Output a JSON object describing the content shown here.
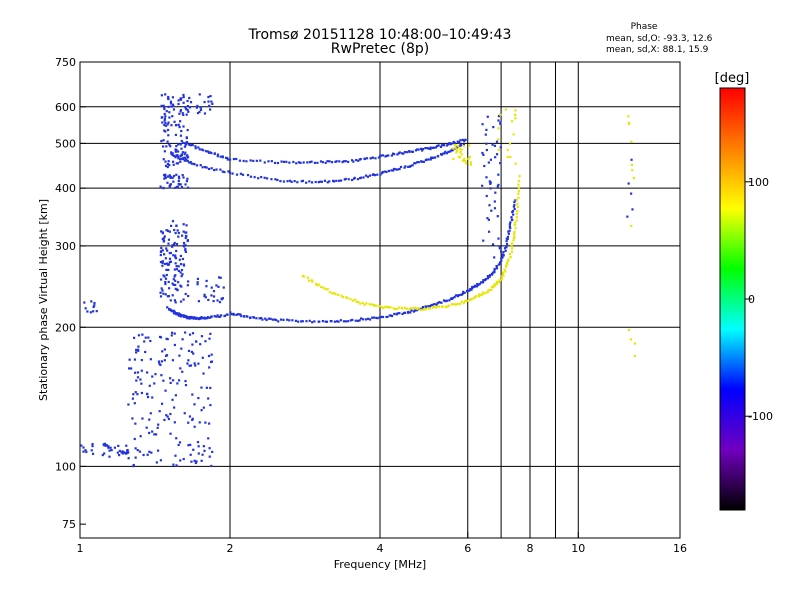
{
  "chart_data": {
    "type": "scatter",
    "title": "Tromsø 20151128 10:48:00–10:49:43",
    "subtitle": "RwPretec (8p)",
    "xlabel": "Frequency [MHz]",
    "ylabel": "Stationary phase Virtual Height [km]",
    "x_scale": "log",
    "y_scale": "log",
    "xlim": [
      1,
      16
    ],
    "ylim": [
      70,
      750
    ],
    "x_ticks": [
      1,
      2,
      4,
      6,
      8,
      10,
      16
    ],
    "y_ticks": [
      75,
      100,
      200,
      300,
      400,
      500,
      600,
      750
    ],
    "x_gridlines": [
      2,
      4,
      6,
      7,
      8,
      9,
      10
    ],
    "y_gridlines": [
      100,
      200,
      300,
      400,
      500,
      600
    ],
    "grid": true,
    "stats": {
      "title": "Phase",
      "lines": [
        "mean, sd,O: -93.3, 12.6",
        "mean, sd,X:  88.1, 15.9"
      ]
    },
    "colorbar": {
      "label": "[deg]",
      "range": [
        -180,
        180
      ],
      "ticks": [
        100,
        0,
        -100
      ],
      "colors": [
        "#ff0000",
        "#ff8000",
        "#ffff00",
        "#00ff00",
        "#00ffff",
        "#0000ff",
        "#7000c0",
        "#000000"
      ]
    },
    "series": [
      {
        "color": "#2233dd",
        "x": [
          2.0,
          2.2,
          2.5,
          3.0,
          3.5,
          4.0,
          4.5,
          5.0,
          5.5,
          6.0,
          6.4,
          6.8,
          7.1,
          7.3,
          7.5
        ],
        "y": [
          215,
          210,
          207,
          206,
          207,
          210,
          215,
          222,
          230,
          240,
          250,
          265,
          290,
          330,
          380
        ]
      },
      {
        "color": "#e6e600",
        "x": [
          2.8,
          3.2,
          3.7,
          4.2,
          4.8,
          5.4,
          6.0,
          6.6,
          7.0,
          7.3,
          7.5,
          7.6
        ],
        "y": [
          258,
          238,
          225,
          220,
          219,
          222,
          228,
          240,
          255,
          285,
          340,
          430
        ]
      },
      {
        "color": "#2233dd",
        "x": [
          1.55,
          1.7,
          2.0,
          2.5,
          3.0,
          3.5,
          4.0,
          4.5,
          5.0,
          5.5,
          5.9
        ],
        "y": [
          470,
          450,
          432,
          415,
          412,
          418,
          430,
          445,
          462,
          480,
          500
        ]
      },
      {
        "color": "#2233dd",
        "x": [
          1.6,
          1.8,
          2.0,
          2.5,
          3.0,
          3.5,
          4.0,
          4.5,
          5.0,
          5.5,
          6.0
        ],
        "y": [
          505,
          480,
          462,
          455,
          455,
          458,
          468,
          478,
          488,
          498,
          510
        ]
      },
      {
        "color": "#2233dd",
        "x": [
          1.5,
          1.55,
          1.6,
          1.65,
          1.7,
          1.8,
          2.0
        ],
        "y": [
          220,
          215,
          212,
          210,
          209,
          210,
          213
        ]
      }
    ],
    "scatter_clouds": [
      {
        "color": "#2233dd",
        "x_range": [
          1.45,
          1.65
        ],
        "y_range": [
          400,
          640
        ],
        "count": 160
      },
      {
        "color": "#2233dd",
        "x_range": [
          1.45,
          1.65
        ],
        "y_range": [
          225,
          340
        ],
        "count": 130
      },
      {
        "color": "#2233dd",
        "x_range": [
          1.25,
          1.85
        ],
        "y_range": [
          100,
          195
        ],
        "count": 190
      },
      {
        "color": "#2233dd",
        "x_range": [
          1.0,
          1.25
        ],
        "y_range": [
          105,
          112
        ],
        "count": 40
      },
      {
        "color": "#2233dd",
        "x_range": [
          1.7,
          1.95
        ],
        "y_range": [
          225,
          260
        ],
        "count": 25
      },
      {
        "color": "#2233dd",
        "x_range": [
          1.65,
          1.85
        ],
        "y_range": [
          575,
          640
        ],
        "count": 20
      },
      {
        "color": "#2233dd",
        "x_range": [
          6.4,
          7.0
        ],
        "y_range": [
          280,
          590
        ],
        "count": 50
      },
      {
        "color": "#e6e600",
        "x_range": [
          5.6,
          6.1
        ],
        "y_range": [
          450,
          500
        ],
        "count": 25
      },
      {
        "color": "#e6e600",
        "x_range": [
          6.9,
          7.5
        ],
        "y_range": [
          450,
          600
        ],
        "count": 15
      },
      {
        "color": "#e6e600",
        "x_range": [
          12.5,
          13.0
        ],
        "y_range": [
          150,
          580
        ],
        "count": 12
      },
      {
        "color": "#2233dd",
        "x_range": [
          12.5,
          13.0
        ],
        "y_range": [
          270,
          470
        ],
        "count": 5
      },
      {
        "color": "#2233dd",
        "x_range": [
          1.0,
          1.08
        ],
        "y_range": [
          215,
          228
        ],
        "count": 10
      }
    ]
  }
}
